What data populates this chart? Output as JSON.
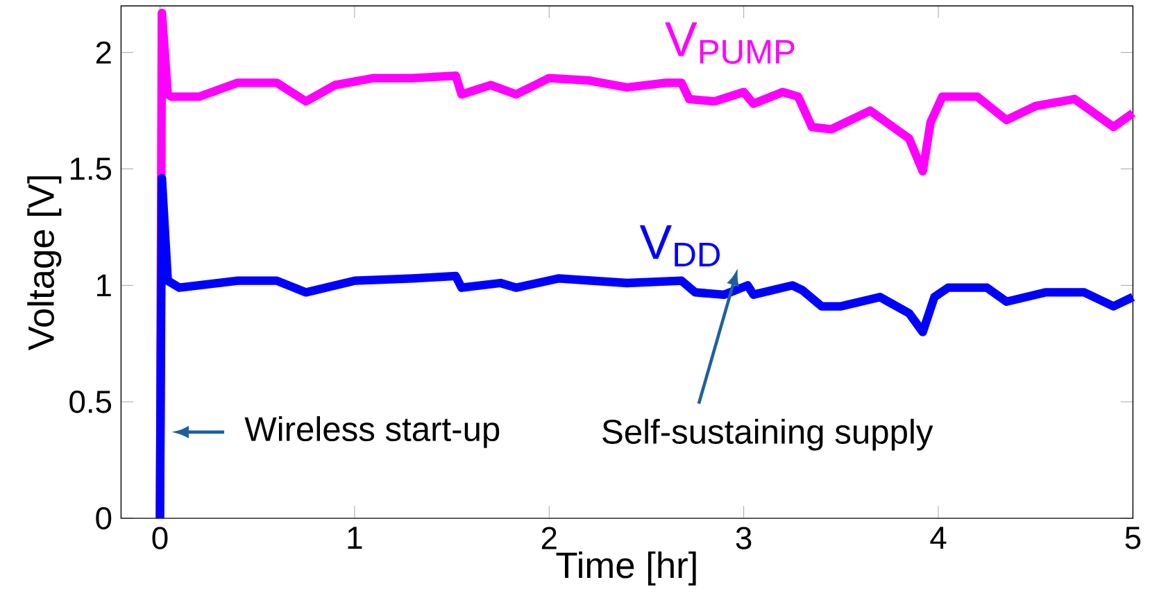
{
  "chart_data": {
    "type": "line",
    "xlabel": "Time [hr]",
    "ylabel": "Voltage [V]",
    "xlim": [
      -0.2,
      5
    ],
    "ylim": [
      0,
      2.2
    ],
    "xticks": [
      0,
      1,
      2,
      3,
      4,
      5
    ],
    "yticks": [
      0,
      0.5,
      1,
      1.5,
      2
    ],
    "grid": false,
    "marker": "none",
    "line_style": "solid",
    "series": [
      {
        "name": "V$_{PUMP}$",
        "color": "#ff00ff",
        "x": [
          0,
          0.01,
          0.04,
          0.06,
          0.2,
          0.4,
          0.6,
          0.75,
          0.9,
          1.1,
          1.3,
          1.52,
          1.55,
          1.7,
          1.83,
          2.0,
          2.2,
          2.4,
          2.6,
          2.68,
          2.72,
          2.85,
          3.0,
          3.05,
          3.2,
          3.28,
          3.35,
          3.45,
          3.65,
          3.85,
          3.92,
          3.96,
          4.02,
          4.2,
          4.35,
          4.5,
          4.7,
          4.9,
          5.0
        ],
        "values": [
          0,
          2.17,
          1.82,
          1.81,
          1.81,
          1.87,
          1.87,
          1.79,
          1.86,
          1.89,
          1.89,
          1.9,
          1.82,
          1.86,
          1.82,
          1.89,
          1.88,
          1.85,
          1.87,
          1.87,
          1.8,
          1.79,
          1.83,
          1.78,
          1.83,
          1.81,
          1.68,
          1.67,
          1.75,
          1.63,
          1.49,
          1.7,
          1.81,
          1.81,
          1.71,
          1.77,
          1.8,
          1.68,
          1.74
        ]
      },
      {
        "name": "V$_{DD}$",
        "color": "#0000ff",
        "x": [
          0,
          0.01,
          0.04,
          0.1,
          0.4,
          0.6,
          0.75,
          1.0,
          1.3,
          1.52,
          1.55,
          1.75,
          1.83,
          2.05,
          2.4,
          2.68,
          2.75,
          2.9,
          3.02,
          3.05,
          3.25,
          3.3,
          3.4,
          3.5,
          3.7,
          3.85,
          3.92,
          3.98,
          4.05,
          4.25,
          4.35,
          4.55,
          4.75,
          4.9,
          5.0
        ],
        "values": [
          0,
          1.46,
          1.02,
          0.99,
          1.02,
          1.02,
          0.97,
          1.02,
          1.03,
          1.04,
          0.99,
          1.01,
          0.99,
          1.03,
          1.01,
          1.02,
          0.97,
          0.96,
          1.0,
          0.96,
          1.0,
          0.98,
          0.91,
          0.91,
          0.95,
          0.88,
          0.8,
          0.95,
          0.99,
          0.99,
          0.93,
          0.97,
          0.97,
          0.91,
          0.95
        ]
      }
    ],
    "annotations": [
      {
        "text": "Wireless start-up",
        "x": 0.03,
        "y": 0.37
      },
      "Self-sustaining supply"
    ]
  }
}
